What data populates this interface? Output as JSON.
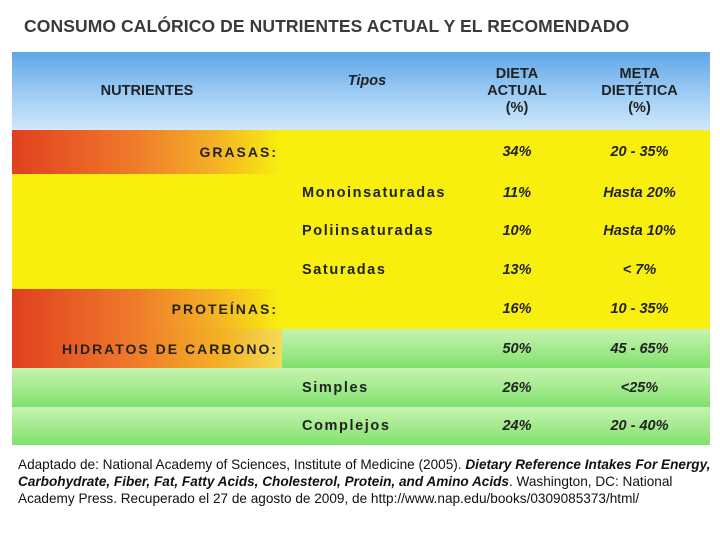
{
  "title": "CONSUMO CALÓRICO DE NUTRIENTES ACTUAL Y EL RECOMENDADO",
  "header": {
    "nutrientes": "NUTRIENTES",
    "tipos": "Tipos",
    "dieta_line1": "DIETA",
    "dieta_line2": "ACTUAL",
    "dieta_line3": "(%)",
    "meta_line1": "META",
    "meta_line2": "DIETÉTICA",
    "meta_line3": "(%)"
  },
  "rows": [
    {
      "label": "GRASAS:",
      "actual": "34%",
      "meta": "20 - 35%"
    },
    {
      "label": "Monoinsaturadas",
      "actual": "11%",
      "meta": "Hasta 20%"
    },
    {
      "label": "Poliinsaturadas",
      "actual": "10%",
      "meta": "Hasta 10%"
    },
    {
      "label": "Saturadas",
      "actual": "13%",
      "meta": "< 7%"
    },
    {
      "label": "PROTEÍNAS:",
      "actual": "16%",
      "meta": "10 - 35%"
    },
    {
      "label": "HIDRATOS DE CARBONO:",
      "actual": "50%",
      "meta": "45 - 65%"
    },
    {
      "label": "Simples",
      "actual": "26%",
      "meta": "<25%"
    },
    {
      "label": "Complejos",
      "actual": "24%",
      "meta": "20 - 40%"
    }
  ],
  "source": {
    "part1": "Adaptado de: National Academy of Sciences, Institute of Medicine (2005). ",
    "part2": "Dietary Reference Intakes For Energy, Carbohydrate, Fiber, Fat, Fatty Acids, Cholesterol, Protein, and Amino Acids",
    "part3": ". Washington, DC: National Academy Press.  Recuperado el 27 de agosto de 2009, de http://www.nap.edu/books/0309085373/html/"
  },
  "colors": {
    "header_blue": "#5fa6e6",
    "yellow": "#f8ef0e",
    "red": "#e0401e",
    "green": "#8ee57a"
  }
}
